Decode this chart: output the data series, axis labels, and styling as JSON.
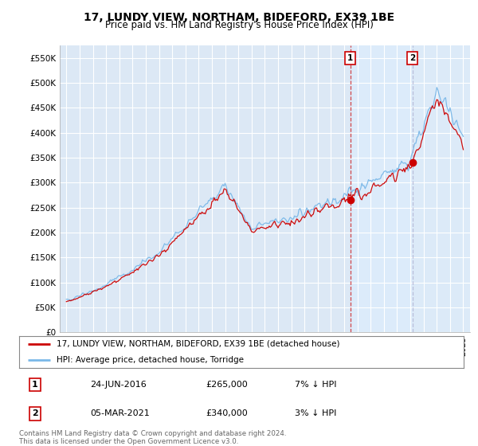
{
  "title": "17, LUNDY VIEW, NORTHAM, BIDEFORD, EX39 1BE",
  "subtitle": "Price paid vs. HM Land Registry's House Price Index (HPI)",
  "legend_line1": "17, LUNDY VIEW, NORTHAM, BIDEFORD, EX39 1BE (detached house)",
  "legend_line2": "HPI: Average price, detached house, Torridge",
  "footer": "Contains HM Land Registry data © Crown copyright and database right 2024.\nThis data is licensed under the Open Government Licence v3.0.",
  "transaction1_date": "24-JUN-2016",
  "transaction1_price": "£265,000",
  "transaction1_hpi": "7% ↓ HPI",
  "transaction2_date": "05-MAR-2021",
  "transaction2_price": "£340,000",
  "transaction2_hpi": "3% ↓ HPI",
  "hpi_color": "#7ab8e8",
  "price_color": "#cc0000",
  "vline1_color": "#cc0000",
  "vline1_style": "--",
  "vline2_color": "#aaaacc",
  "vline2_style": "--",
  "highlight_color": "#ddeeff",
  "ylim": [
    0,
    575000
  ],
  "yticks": [
    0,
    50000,
    100000,
    150000,
    200000,
    250000,
    300000,
    350000,
    400000,
    450000,
    500000,
    550000
  ],
  "ytick_labels": [
    "£0",
    "£50K",
    "£100K",
    "£150K",
    "£200K",
    "£250K",
    "£300K",
    "£350K",
    "£400K",
    "£450K",
    "£500K",
    "£550K"
  ],
  "plot_bg_color": "#dce8f5",
  "grid_color": "#ffffff",
  "t1_year": 2016.46,
  "t2_year": 2021.17,
  "t1_price": 265000,
  "t2_price": 340000
}
